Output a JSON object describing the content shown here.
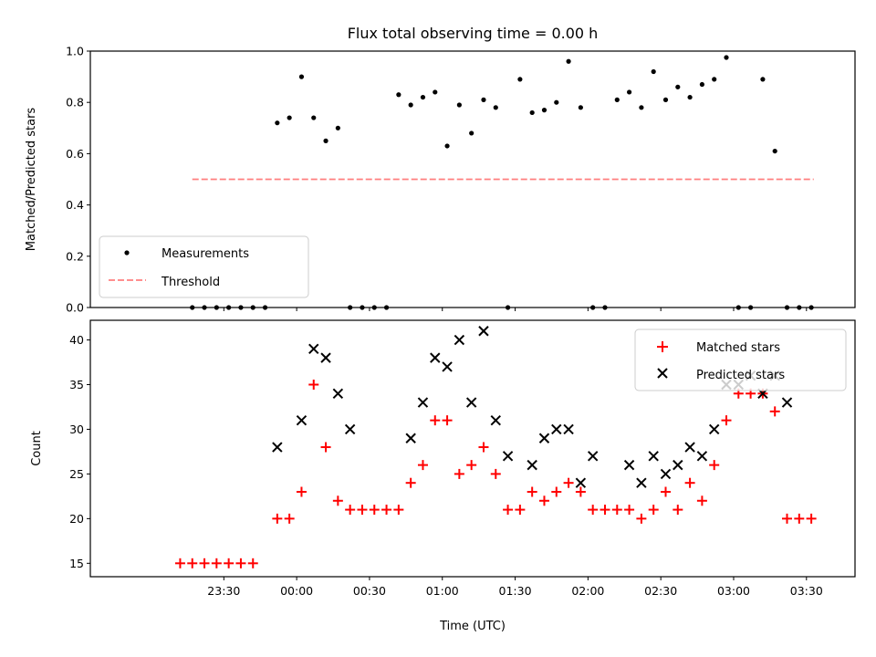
{
  "chart_data": [
    {
      "type": "scatter",
      "title": "Flux total observing time = 0.00 h",
      "xlabel": "",
      "ylabel": "Matched/Predicted stars",
      "ylim": [
        0,
        1.0
      ],
      "yticks": [
        "0.0",
        "0.2",
        "0.4",
        "0.6",
        "0.8",
        "1.0"
      ],
      "x_unit": "minutes since 23:00 UTC",
      "legend": {
        "position": "lower-left",
        "entries": [
          "Measurements",
          "Threshold"
        ]
      },
      "threshold": {
        "value": 0.5,
        "x_start": 17,
        "x_end": 273,
        "color": "#ff7f7f",
        "name": "Threshold"
      },
      "series": [
        {
          "name": "Measurements",
          "color": "#000000",
          "x": [
            17,
            22,
            27,
            32,
            37,
            42,
            47,
            52,
            57,
            62,
            67,
            72,
            77,
            82,
            87,
            92,
            97,
            102,
            107,
            112,
            117,
            122,
            127,
            132,
            137,
            142,
            147,
            152,
            157,
            162,
            167,
            172,
            177,
            182,
            187,
            192,
            197,
            202,
            207,
            212,
            217,
            222,
            227,
            232,
            237,
            242,
            247,
            252,
            257,
            262,
            267,
            272
          ],
          "y": [
            0,
            0,
            0,
            0,
            0,
            0,
            0,
            0.72,
            0.74,
            0.9,
            0.74,
            0.65,
            0.7,
            0,
            0,
            0,
            0,
            0.83,
            0.79,
            0.82,
            0.84,
            0.63,
            0.79,
            0.68,
            0.81,
            0.78,
            0,
            0.89,
            0.76,
            0.77,
            0.8,
            0.96,
            0.78,
            0,
            0,
            0.81,
            0.84,
            0.78,
            0.92,
            0.81,
            0.86,
            0.82,
            0.87,
            0.89,
            0.975,
            0,
            0,
            0.89,
            0.61,
            0,
            0,
            0
          ]
        }
      ]
    },
    {
      "type": "scatter",
      "title": "",
      "xlabel": "Time (UTC)",
      "ylabel": "Count",
      "ylim": [
        13.5,
        42.2
      ],
      "yticks": [
        "15",
        "20",
        "25",
        "30",
        "35",
        "40"
      ],
      "x_unit": "minutes since 23:00 UTC",
      "xlim": [
        -25,
        290
      ],
      "xticks": [
        {
          "x": 30,
          "label": "23:30"
        },
        {
          "x": 60,
          "label": "00:00"
        },
        {
          "x": 90,
          "label": "00:30"
        },
        {
          "x": 120,
          "label": "01:00"
        },
        {
          "x": 150,
          "label": "01:30"
        },
        {
          "x": 180,
          "label": "02:00"
        },
        {
          "x": 210,
          "label": "02:30"
        },
        {
          "x": 240,
          "label": "03:00"
        },
        {
          "x": 270,
          "label": "03:30"
        }
      ],
      "legend": {
        "position": "top-right",
        "entries": [
          "Matched stars",
          "Predicted stars"
        ]
      },
      "series": [
        {
          "name": "Matched stars",
          "marker": "plus",
          "color": "#ff0000",
          "x": [
            12,
            17,
            22,
            27,
            32,
            37,
            42,
            52,
            57,
            62,
            67,
            72,
            77,
            82,
            87,
            92,
            97,
            102,
            107,
            112,
            117,
            122,
            127,
            132,
            137,
            142,
            147,
            152,
            157,
            162,
            167,
            172,
            177,
            182,
            187,
            192,
            197,
            202,
            207,
            212,
            217,
            222,
            227,
            232,
            237,
            242,
            247,
            252,
            257,
            262,
            267,
            272
          ],
          "y": [
            15,
            15,
            15,
            15,
            15,
            15,
            15,
            20,
            20,
            23,
            35,
            28,
            22,
            21,
            21,
            21,
            21,
            21,
            24,
            26,
            31,
            31,
            25,
            26,
            28,
            25,
            21,
            21,
            23,
            22,
            23,
            24,
            23,
            21,
            21,
            21,
            21,
            20,
            21,
            23,
            21,
            24,
            22,
            26,
            31,
            34,
            34,
            34,
            32,
            20,
            20,
            20
          ]
        },
        {
          "name": "Predicted stars",
          "marker": "x",
          "color": "#000000",
          "x": [
            52,
            62,
            67,
            72,
            77,
            82,
            107,
            112,
            117,
            122,
            127,
            132,
            137,
            142,
            147,
            157,
            162,
            167,
            172,
            177,
            182,
            197,
            202,
            207,
            212,
            217,
            222,
            227,
            232,
            237,
            242,
            247,
            252,
            257,
            262
          ],
          "y": [
            28,
            31,
            39,
            38,
            34,
            30,
            29,
            33,
            38,
            37,
            40,
            33,
            41,
            31,
            27,
            26,
            29,
            30,
            30,
            24,
            27,
            26,
            24,
            27,
            25,
            26,
            28,
            27,
            30,
            35,
            35,
            36,
            34,
            36,
            33
          ]
        }
      ]
    }
  ]
}
